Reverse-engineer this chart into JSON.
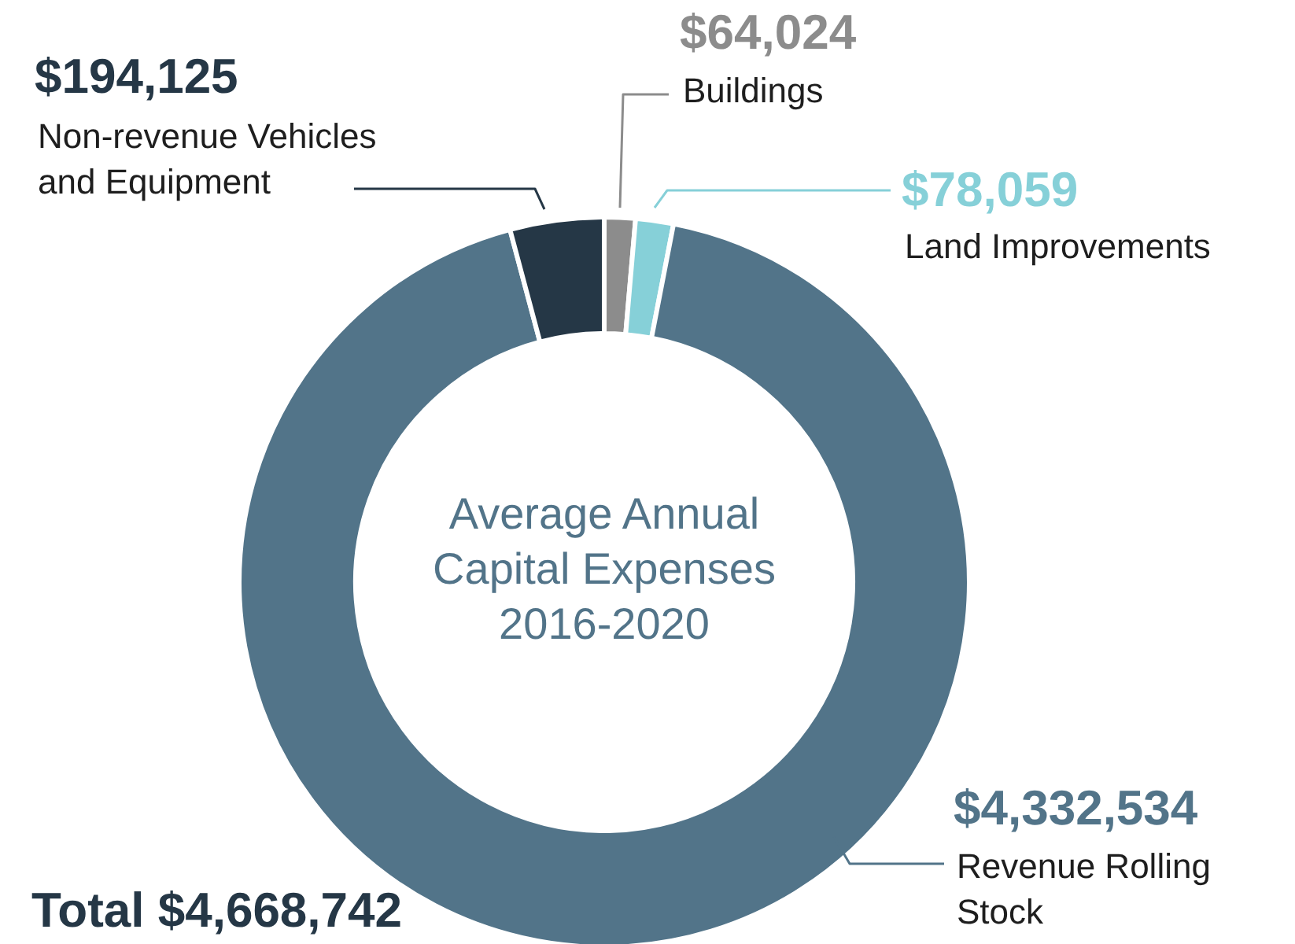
{
  "chart_data": {
    "type": "donut",
    "title": "Average Annual Capital Expenses 2016-2020",
    "categories": [
      "Buildings",
      "Land Improvements",
      "Revenue Rolling Stock",
      "Non-revenue Vehicles and Equipment"
    ],
    "values": [
      64024,
      78059,
      4332534,
      194125
    ],
    "colors": [
      "#8c8c8c",
      "#86d0d8",
      "#527489",
      "#253746"
    ],
    "value_labels": [
      "$64,024",
      "$78,059",
      "$4,332,534",
      "$194,125"
    ],
    "annotations": [
      "Total $4,668,742"
    ]
  }
}
